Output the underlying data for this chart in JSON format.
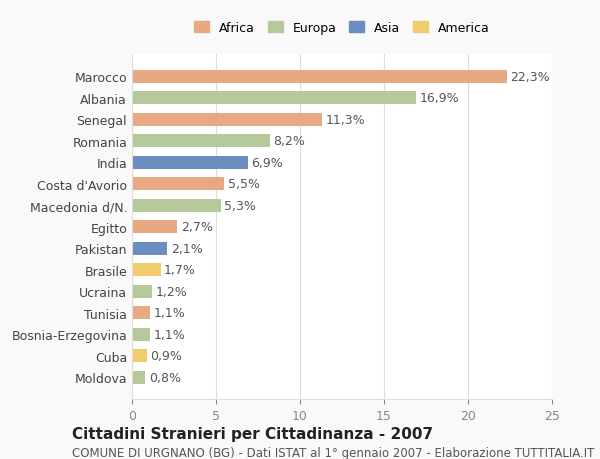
{
  "categories": [
    "Marocco",
    "Albania",
    "Senegal",
    "Romania",
    "India",
    "Costa d'Avorio",
    "Macedonia d/N.",
    "Egitto",
    "Pakistan",
    "Brasile",
    "Ucraina",
    "Tunisia",
    "Bosnia-Erzegovina",
    "Cuba",
    "Moldova"
  ],
  "values": [
    22.3,
    16.9,
    11.3,
    8.2,
    6.9,
    5.5,
    5.3,
    2.7,
    2.1,
    1.7,
    1.2,
    1.1,
    1.1,
    0.9,
    0.8
  ],
  "continents": [
    "Africa",
    "Europa",
    "Africa",
    "Europa",
    "Asia",
    "Africa",
    "Europa",
    "Africa",
    "Asia",
    "America",
    "Europa",
    "Africa",
    "Europa",
    "America",
    "Europa"
  ],
  "colors": {
    "Africa": "#E8A882",
    "Europa": "#B5C99A",
    "Asia": "#6B8DBF",
    "America": "#F0CC6E"
  },
  "legend_order": [
    "Africa",
    "Europa",
    "Asia",
    "America"
  ],
  "legend_colors": [
    "#E8A882",
    "#B5C99A",
    "#6B8DBF",
    "#F0CC6E"
  ],
  "xlim": [
    0,
    25
  ],
  "xticks": [
    0,
    5,
    10,
    15,
    20,
    25
  ],
  "title": "Cittadini Stranieri per Cittadinanza - 2007",
  "subtitle": "COMUNE DI URGNANO (BG) - Dati ISTAT al 1° gennaio 2007 - Elaborazione TUTTITALIA.IT",
  "bar_height": 0.6,
  "background_color": "#f9f9f9",
  "plot_bg_color": "#ffffff",
  "grid_color": "#dddddd",
  "label_fontsize": 9,
  "value_fontsize": 9,
  "title_fontsize": 11,
  "subtitle_fontsize": 8.5
}
